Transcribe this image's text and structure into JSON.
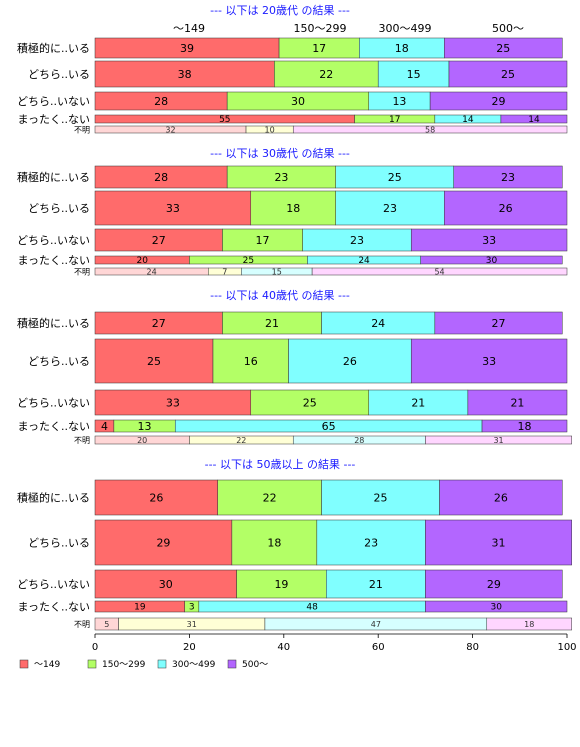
{
  "chart_data": {
    "type": "bar",
    "stacked": "percent",
    "orientation": "horizontal",
    "xlim": [
      0,
      100
    ],
    "x_ticks": [
      "0",
      "20",
      "40",
      "60",
      "80",
      "100"
    ],
    "series_names": [
      "～149",
      "150～299",
      "300～499",
      "500～"
    ],
    "colors": [
      "#ff6b6b",
      "#b3ff66",
      "#80ffff",
      "#b366ff"
    ],
    "unknown_colors": [
      "#ffd6d6",
      "#ffffd6",
      "#d6ffff",
      "#ffd6ff"
    ],
    "column_headers": [
      "～149",
      "150～299",
      "300～499",
      "500～"
    ],
    "panels": [
      {
        "title": "--- 以下は 20歳代 の結果 ---",
        "rows": [
          {
            "label": "積極的に..いる",
            "values": [
              39,
              17,
              18,
              25
            ]
          },
          {
            "label": "どちら..いる",
            "values": [
              38,
              22,
              15,
              25
            ]
          },
          {
            "label": "どちら..いない",
            "values": [
              28,
              30,
              13,
              29
            ]
          },
          {
            "label": "まったく..ない",
            "values": [
              55,
              17,
              14,
              14
            ]
          },
          {
            "label": "不明",
            "values": [
              32,
              10,
              0,
              58
            ]
          }
        ]
      },
      {
        "title": "--- 以下は 30歳代 の結果 ---",
        "rows": [
          {
            "label": "積極的に..いる",
            "values": [
              28,
              23,
              25,
              23
            ]
          },
          {
            "label": "どちら..いる",
            "values": [
              33,
              18,
              23,
              26
            ]
          },
          {
            "label": "どちら..いない",
            "values": [
              27,
              17,
              23,
              33
            ]
          },
          {
            "label": "まったく..ない",
            "values": [
              20,
              25,
              24,
              30
            ]
          },
          {
            "label": "不明",
            "values": [
              24,
              7,
              15,
              54
            ]
          }
        ]
      },
      {
        "title": "--- 以下は 40歳代 の結果 ---",
        "rows": [
          {
            "label": "積極的に..いる",
            "values": [
              27,
              21,
              24,
              27
            ]
          },
          {
            "label": "どちら..いる",
            "values": [
              25,
              16,
              26,
              33
            ]
          },
          {
            "label": "どちら..いない",
            "values": [
              33,
              25,
              21,
              21
            ]
          },
          {
            "label": "まったく..ない",
            "values": [
              4,
              13,
              65,
              18
            ]
          },
          {
            "label": "不明",
            "values": [
              20,
              22,
              28,
              31
            ]
          }
        ]
      },
      {
        "title": "--- 以下は 50歳以上 の結果 ---",
        "rows": [
          {
            "label": "積極的に..いる",
            "values": [
              26,
              22,
              25,
              26
            ]
          },
          {
            "label": "どちら..いる",
            "values": [
              29,
              18,
              23,
              31
            ]
          },
          {
            "label": "どちら..いない",
            "values": [
              30,
              19,
              21,
              29
            ]
          },
          {
            "label": "まったく..ない",
            "values": [
              19,
              3,
              48,
              30
            ]
          },
          {
            "label": "不明",
            "values": [
              5,
              31,
              47,
              18
            ]
          }
        ]
      }
    ]
  }
}
